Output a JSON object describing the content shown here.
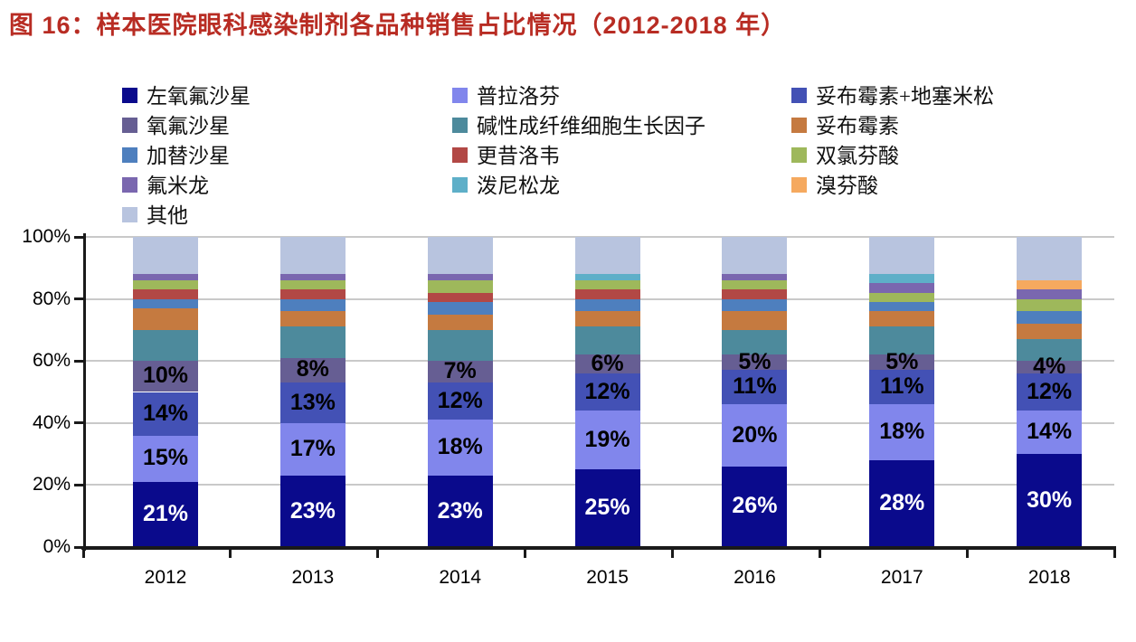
{
  "figure": {
    "title": "图 16：样本医院眼科感染制剂各品种销售占比情况（2012-2018 年）",
    "title_color": "#b82c23"
  },
  "chart_data": {
    "type": "bar",
    "subtype": "stacked-percent",
    "title": "样本医院眼科感染制剂各品种销售占比情况（2012-2018 年）",
    "categories": [
      "2012",
      "2013",
      "2014",
      "2015",
      "2016",
      "2017",
      "2018"
    ],
    "xlabel": "",
    "ylabel": "",
    "ylim": [
      0,
      100
    ],
    "ytick_labels": [
      "0%",
      "20%",
      "40%",
      "60%",
      "80%",
      "100%"
    ],
    "grid": true,
    "legend_position": "top",
    "value_suffix": "%",
    "series": [
      {
        "name": "左氧氟沙星",
        "color": "#0a0a8c",
        "values": [
          21,
          23,
          23,
          25,
          26,
          28,
          30
        ],
        "show_labels": true,
        "label_color": "#ffffff"
      },
      {
        "name": "普拉洛芬",
        "color": "#8186ec",
        "values": [
          15,
          17,
          18,
          19,
          20,
          18,
          14
        ],
        "show_labels": true,
        "label_color": "#000000"
      },
      {
        "name": "妥布霉素+地塞米松",
        "color": "#4351b5",
        "values": [
          14,
          13,
          12,
          12,
          11,
          11,
          12
        ],
        "show_labels": true,
        "label_color": "#000000"
      },
      {
        "name": "氧氟沙星",
        "color": "#665e93",
        "values": [
          10,
          8,
          7,
          6,
          5,
          5,
          4
        ],
        "show_labels": true,
        "label_color": "#000000"
      },
      {
        "name": "碱性成纤维细胞生长因子",
        "color": "#4d8a9c",
        "values": [
          10,
          10,
          10,
          9,
          8,
          9,
          7
        ],
        "show_labels": false
      },
      {
        "name": "妥布霉素",
        "color": "#c57a40",
        "values": [
          7,
          5,
          5,
          5,
          6,
          5,
          5
        ],
        "show_labels": false
      },
      {
        "name": "加替沙星",
        "color": "#4e7fbe",
        "values": [
          3,
          4,
          4,
          4,
          4,
          3,
          4
        ],
        "show_labels": false
      },
      {
        "name": "更昔洛韦",
        "color": "#b24845",
        "values": [
          3,
          3,
          3,
          3,
          3,
          0,
          0
        ],
        "show_labels": false
      },
      {
        "name": "双氯芬酸",
        "color": "#9eb85b",
        "values": [
          3,
          3,
          4,
          3,
          3,
          3,
          4
        ],
        "show_labels": false
      },
      {
        "name": "氟米龙",
        "color": "#7a67af",
        "values": [
          2,
          2,
          2,
          0,
          2,
          3,
          3
        ],
        "show_labels": false
      },
      {
        "name": "泼尼松龙",
        "color": "#5eafc8",
        "values": [
          0,
          0,
          0,
          2,
          0,
          3,
          0
        ],
        "show_labels": false
      },
      {
        "name": "溴芬酸",
        "color": "#f5a95f",
        "values": [
          0,
          0,
          0,
          0,
          0,
          0,
          3
        ],
        "show_labels": false
      },
      {
        "name": "其他",
        "color": "#b8c4df",
        "values": [
          12,
          12,
          12,
          12,
          12,
          12,
          14
        ],
        "show_labels": false
      }
    ],
    "legend_columns": [
      [
        "左氧氟沙星",
        "氧氟沙星",
        "加替沙星",
        "氟米龙",
        "其他"
      ],
      [
        "普拉洛芬",
        "碱性成纤维细胞生长因子",
        "更昔洛韦",
        "泼尼松龙"
      ],
      [
        "妥布霉素+地塞米松",
        "妥布霉素",
        "双氯芬酸",
        "溴芬酸"
      ]
    ]
  }
}
